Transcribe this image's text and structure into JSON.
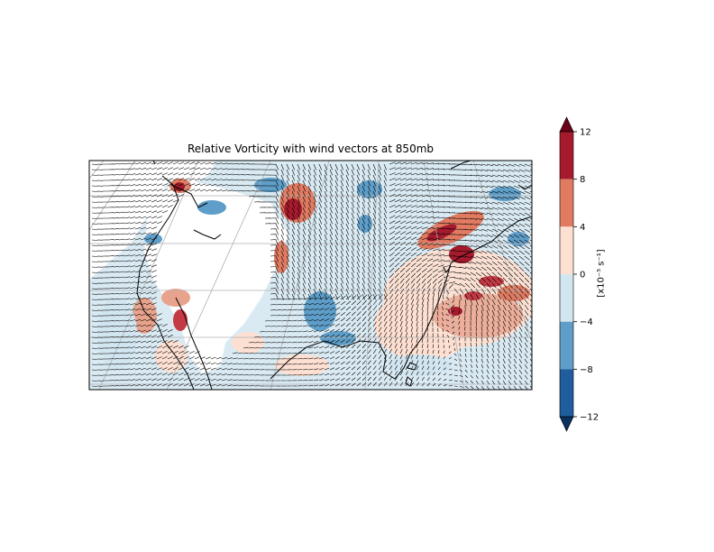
{
  "title": "Relative Vorticity with wind vectors at 850mb",
  "colorbar": {
    "label": "[x10⁻⁵ s⁻¹]",
    "ticks": [
      "12",
      "8",
      "4",
      "0",
      "−4",
      "−8",
      "−12"
    ],
    "levels": [
      -12,
      -8,
      -4,
      0,
      4,
      8,
      12
    ],
    "colors": [
      "#1f5d9e",
      "#5e9ec9",
      "#d2e6f1",
      "#fde0d2",
      "#e07b62",
      "#a51b2d"
    ],
    "extend_min_color": "#0a3160",
    "extend_max_color": "#6b0018"
  },
  "palette": {
    "ocean": "#d9eaf3",
    "coast": "#000000",
    "grid": "#b0b0b0",
    "vectors": "#000000"
  }
}
